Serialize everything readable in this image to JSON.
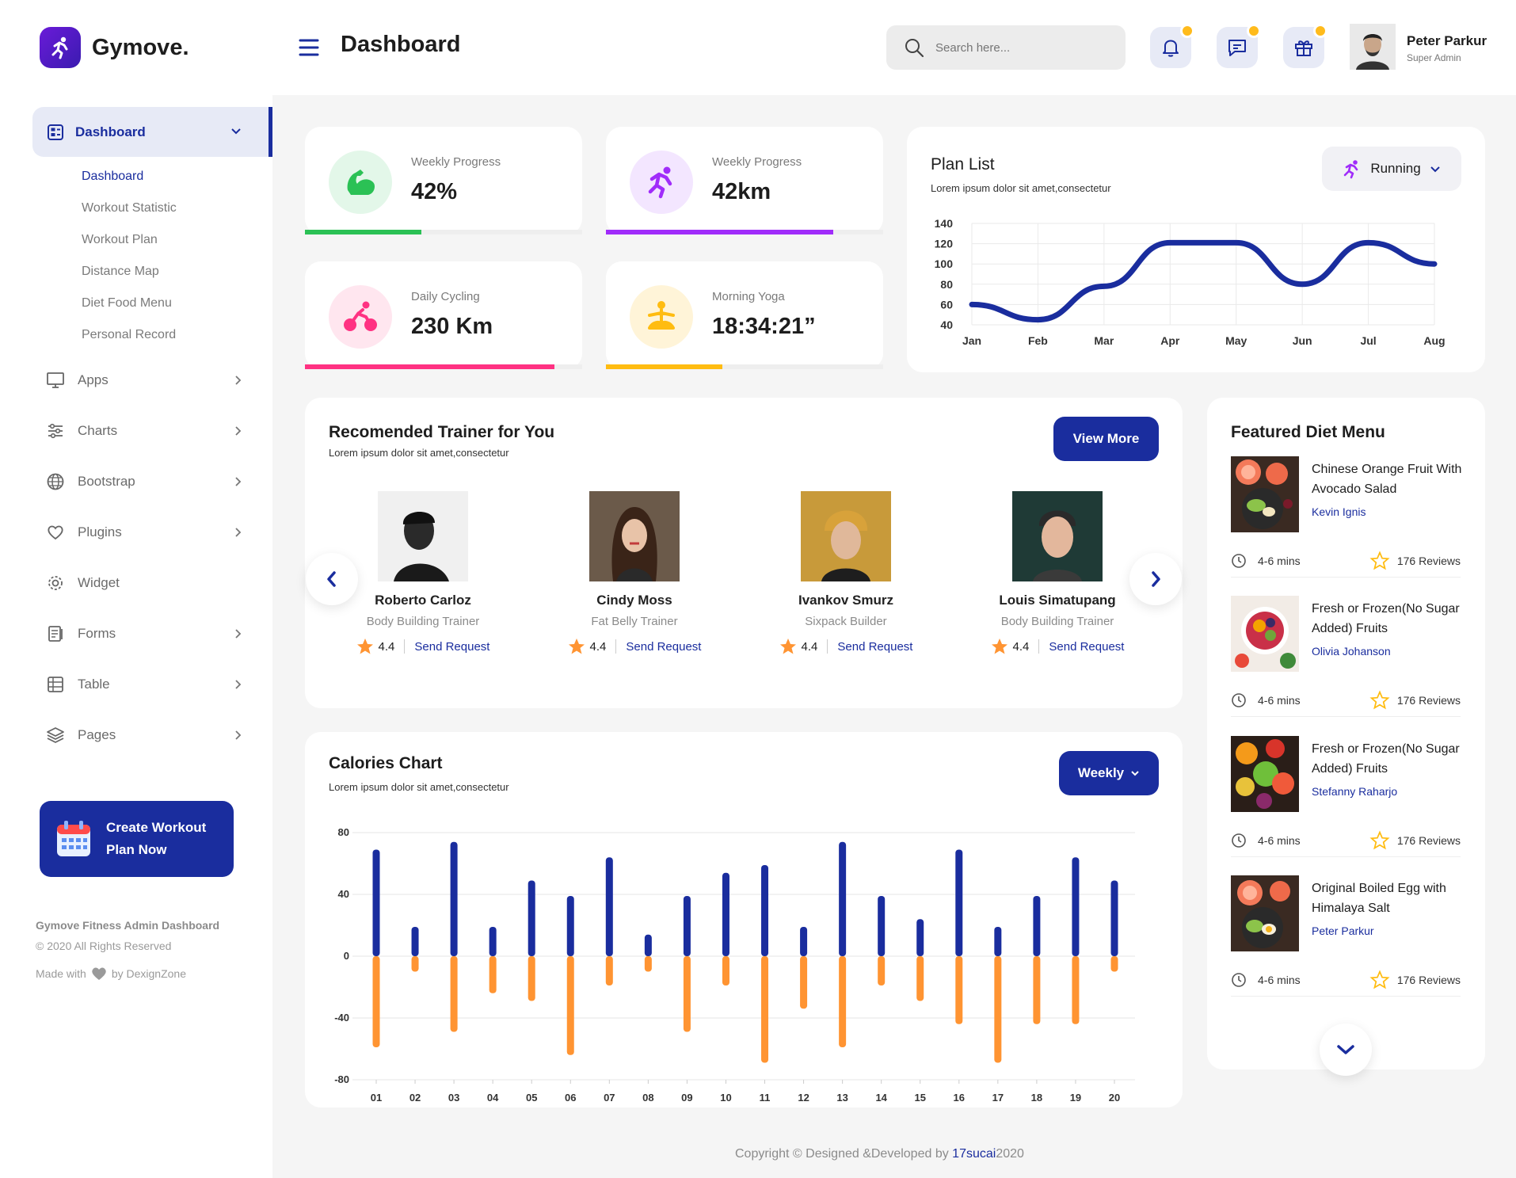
{
  "brand": {
    "name": "Gymove."
  },
  "sidebar": {
    "active": {
      "label": "Dashboard"
    },
    "sub_items": [
      "Dashboard",
      "Workout Statistic",
      "Workout Plan",
      "Distance Map",
      "Diet Food Menu",
      "Personal Record"
    ],
    "items": [
      {
        "label": "Apps",
        "icon": "monitor-icon"
      },
      {
        "label": "Charts",
        "icon": "sliders-icon"
      },
      {
        "label": "Bootstrap",
        "icon": "globe-icon"
      },
      {
        "label": "Plugins",
        "icon": "heart-icon"
      },
      {
        "label": "Widget",
        "icon": "gear-icon"
      },
      {
        "label": "Forms",
        "icon": "clipboard-icon"
      },
      {
        "label": "Table",
        "icon": "table-icon"
      },
      {
        "label": "Pages",
        "icon": "layers-icon"
      }
    ],
    "cta": {
      "label": "Create Workout Plan Now"
    },
    "footer": {
      "title": "Gymove Fitness Admin Dashboard",
      "rights": "© 2020 All Rights Reserved",
      "made_with": "Made with",
      "by": "by DexignZone"
    }
  },
  "header": {
    "title": "Dashboard",
    "search_placeholder": "Search here...",
    "user": {
      "name": "Peter Parkur",
      "role": "Super Admin"
    }
  },
  "stats": [
    {
      "label": "Weekly Progress",
      "value": "42%",
      "progress": 0.42,
      "color": "#2bc155",
      "icon": "muscle-icon"
    },
    {
      "label": "Weekly Progress",
      "value": "42km",
      "progress": 0.82,
      "color": "#a02cfa",
      "icon": "running-icon"
    },
    {
      "label": "Daily Cycling",
      "value": "230 Km",
      "progress": 0.9,
      "color": "#ff3282",
      "icon": "cycling-icon"
    },
    {
      "label": "Morning Yoga",
      "value": "18:34:21”",
      "progress": 0.42,
      "color": "#ffbc11",
      "icon": "yoga-icon"
    }
  ],
  "plan_list": {
    "title": "Plan List",
    "subtitle": "Lorem ipsum dolor sit amet,consectetur",
    "dropdown": "Running",
    "chart_data": {
      "type": "line",
      "categories": [
        "Jan",
        "Feb",
        "Mar",
        "Apr",
        "May",
        "Jun",
        "Jul",
        "Aug"
      ],
      "values": [
        60,
        45,
        78,
        121,
        121,
        80,
        121,
        100
      ],
      "yticks": [
        140,
        120,
        100,
        80,
        60,
        40
      ],
      "ylim": [
        40,
        140
      ],
      "color": "#1a2d9e",
      "grid": true
    }
  },
  "trainers": {
    "title": "Recomended Trainer for You",
    "subtitle": "Lorem ipsum dolor sit amet,consectetur",
    "view_more": "View More",
    "list": [
      {
        "name": "Roberto Carloz",
        "role": "Body Building Trainer",
        "rating": "4.4",
        "action": "Send Request"
      },
      {
        "name": "Cindy Moss",
        "role": "Fat Belly Trainer",
        "rating": "4.4",
        "action": "Send Request"
      },
      {
        "name": "Ivankov Smurz",
        "role": "Sixpack Builder",
        "rating": "4.4",
        "action": "Send Request"
      },
      {
        "name": "Louis Simatupang",
        "role": "Body Building Trainer",
        "rating": "4.4",
        "action": "Send Request"
      }
    ]
  },
  "calories": {
    "title": "Calories Chart",
    "subtitle": "Lorem ipsum dolor sit amet,consectetur",
    "dropdown": "Weekly",
    "chart_data": {
      "type": "bar",
      "categories": [
        "01",
        "02",
        "03",
        "04",
        "05",
        "06",
        "07",
        "08",
        "09",
        "10",
        "11",
        "12",
        "13",
        "14",
        "15",
        "16",
        "17",
        "18",
        "19",
        "20"
      ],
      "series": [
        {
          "values": [
            69,
            19,
            74,
            19,
            49,
            39,
            64,
            14,
            39,
            54,
            59,
            19,
            74,
            39,
            24,
            69,
            19,
            39,
            64,
            49
          ],
          "color": "#1a2d9e"
        },
        {
          "values": [
            -59,
            -10,
            -49,
            -24,
            -29,
            -64,
            -19,
            -10,
            -49,
            -19,
            -69,
            -34,
            -59,
            -19,
            -29,
            -44,
            -69,
            -44,
            -44,
            -10
          ],
          "color": "#ff9432"
        }
      ],
      "yticks": [
        80,
        40,
        0,
        -40,
        -80
      ],
      "ylim": [
        -80,
        80
      ]
    }
  },
  "diet": {
    "title": "Featured Diet Menu",
    "items": [
      {
        "name": "Chinese Orange Fruit With Avocado Salad",
        "author": "Kevin Ignis",
        "time": "4-6 mins",
        "reviews": "176 Reviews"
      },
      {
        "name": "Fresh or Frozen(No Sugar Added) Fruits",
        "author": "Olivia Johanson",
        "time": "4-6 mins",
        "reviews": "176 Reviews"
      },
      {
        "name": "Fresh or Frozen(No Sugar Added) Fruits",
        "author": "Stefanny Raharjo",
        "time": "4-6 mins",
        "reviews": "176 Reviews"
      },
      {
        "name": "Original Boiled Egg with Himalaya Salt",
        "author": "Peter Parkur",
        "time": "4-6 mins",
        "reviews": "176 Reviews"
      }
    ]
  },
  "copyright": {
    "text": "Copyright © Designed &Developed by ",
    "brand": "17sucai",
    "year": "2020"
  }
}
